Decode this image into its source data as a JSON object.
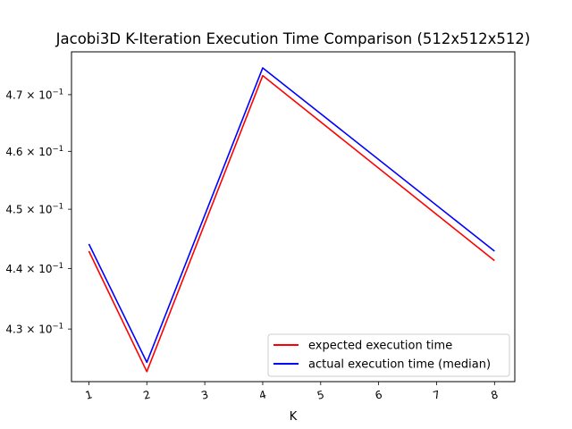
{
  "chart_data": {
    "type": "line",
    "title": "Jacobi3D K-Iteration Execution Time Comparison (512x512x512)",
    "xlabel": "K",
    "ylabel": "",
    "x": [
      1,
      2,
      4,
      8
    ],
    "xticks": [
      "1",
      "2",
      "3",
      "4",
      "5",
      "6",
      "7",
      "8"
    ],
    "xlim": [
      0.7,
      8.35
    ],
    "yscale": "log",
    "ylim": [
      0.4215,
      0.4777
    ],
    "yticks": [
      {
        "value": 0.43,
        "mantissa": "4.3",
        "label": "4.3 × 10⁻¹"
      },
      {
        "value": 0.44,
        "mantissa": "4.4",
        "label": "4.4 × 10⁻¹"
      },
      {
        "value": 0.45,
        "mantissa": "4.5",
        "label": "4.5 × 10⁻¹"
      },
      {
        "value": 0.46,
        "mantissa": "4.6",
        "label": "4.6 × 10⁻¹"
      },
      {
        "value": 0.47,
        "mantissa": "4.7",
        "label": "4.7 × 10⁻¹"
      }
    ],
    "grid": false,
    "legend_position": "lower-right",
    "series": [
      {
        "name": "expected execution time",
        "color": "#ff0000",
        "values": [
          0.4429,
          0.4231,
          0.4734,
          0.4413
        ]
      },
      {
        "name": "actual execution time (median)",
        "color": "#0000ff",
        "values": [
          0.4441,
          0.4246,
          0.4748,
          0.4429
        ]
      }
    ]
  }
}
